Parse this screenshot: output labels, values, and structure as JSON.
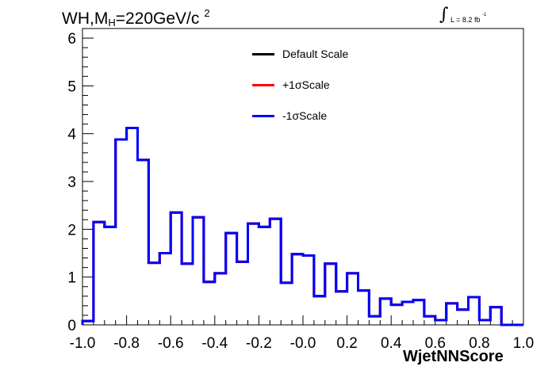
{
  "title": {
    "prefix": "WH,M",
    "sub": "H",
    "suffix": "=220GeV/c",
    "sup": "2"
  },
  "lumi": {
    "integral": "∫",
    "text": "L = 8.2 fb",
    "sup": "-1"
  },
  "legend": [
    {
      "label": "Default Scale",
      "color": "#000000"
    },
    {
      "label": "+1σScale",
      "color": "#ff0000"
    },
    {
      "label": "-1σScale",
      "color": "#0000ff"
    }
  ],
  "chart_data": {
    "type": "histogram",
    "xlabel": "WjetNNScore",
    "ylabel": "",
    "xlim": [
      -1.0,
      1.0
    ],
    "ylim": [
      0,
      6.2
    ],
    "x_ticks": [
      "-1.0",
      "-0.8",
      "-0.6",
      "-0.4",
      "-0.2",
      "-0.0",
      "0.2",
      "0.4",
      "0.6",
      "0.8",
      "1.0"
    ],
    "y_ticks": [
      "0",
      "1",
      "2",
      "3",
      "4",
      "5",
      "6"
    ],
    "bin_edges": [
      -1.0,
      -0.95,
      -0.9,
      -0.85,
      -0.8,
      -0.75,
      -0.7,
      -0.65,
      -0.6,
      -0.55,
      -0.5,
      -0.45,
      -0.4,
      -0.35,
      -0.3,
      -0.25,
      -0.2,
      -0.15,
      -0.1,
      -0.05,
      0.0,
      0.05,
      0.1,
      0.15,
      0.2,
      0.25,
      0.3,
      0.35,
      0.4,
      0.45,
      0.5,
      0.55,
      0.6,
      0.65,
      0.7,
      0.75,
      0.8,
      0.85,
      0.9,
      0.95,
      1.0
    ],
    "series": [
      {
        "name": "Default Scale",
        "color": "#000000",
        "values": [
          0.08,
          2.15,
          2.05,
          3.88,
          4.12,
          3.45,
          1.3,
          1.5,
          2.35,
          1.28,
          2.25,
          0.9,
          1.08,
          1.92,
          1.32,
          2.12,
          2.05,
          2.22,
          0.88,
          1.48,
          1.45,
          0.6,
          1.28,
          0.7,
          1.08,
          0.72,
          0.18,
          0.55,
          0.42,
          0.48,
          0.52,
          0.18,
          0.1,
          0.45,
          0.32,
          0.58,
          0.1,
          0.37,
          0.0,
          0.0
        ]
      },
      {
        "name": "+1σScale",
        "color": "#ff0000",
        "values": [
          0.08,
          2.15,
          2.05,
          3.88,
          4.12,
          3.45,
          1.3,
          1.5,
          2.35,
          1.28,
          2.25,
          0.9,
          1.08,
          1.92,
          1.32,
          2.12,
          2.05,
          2.22,
          0.88,
          1.48,
          1.45,
          0.6,
          1.28,
          0.7,
          1.08,
          0.72,
          0.18,
          0.55,
          0.42,
          0.48,
          0.52,
          0.18,
          0.1,
          0.45,
          0.32,
          0.58,
          0.1,
          0.37,
          0.0,
          0.0
        ]
      },
      {
        "name": "-1σScale",
        "color": "#0000ff",
        "values": [
          0.08,
          2.15,
          2.05,
          3.88,
          4.12,
          3.45,
          1.3,
          1.5,
          2.35,
          1.28,
          2.25,
          0.9,
          1.08,
          1.92,
          1.32,
          2.12,
          2.05,
          2.22,
          0.88,
          1.48,
          1.45,
          0.6,
          1.28,
          0.7,
          1.08,
          0.72,
          0.18,
          0.55,
          0.42,
          0.48,
          0.52,
          0.18,
          0.1,
          0.45,
          0.32,
          0.58,
          0.1,
          0.37,
          0.0,
          0.0
        ]
      }
    ]
  }
}
